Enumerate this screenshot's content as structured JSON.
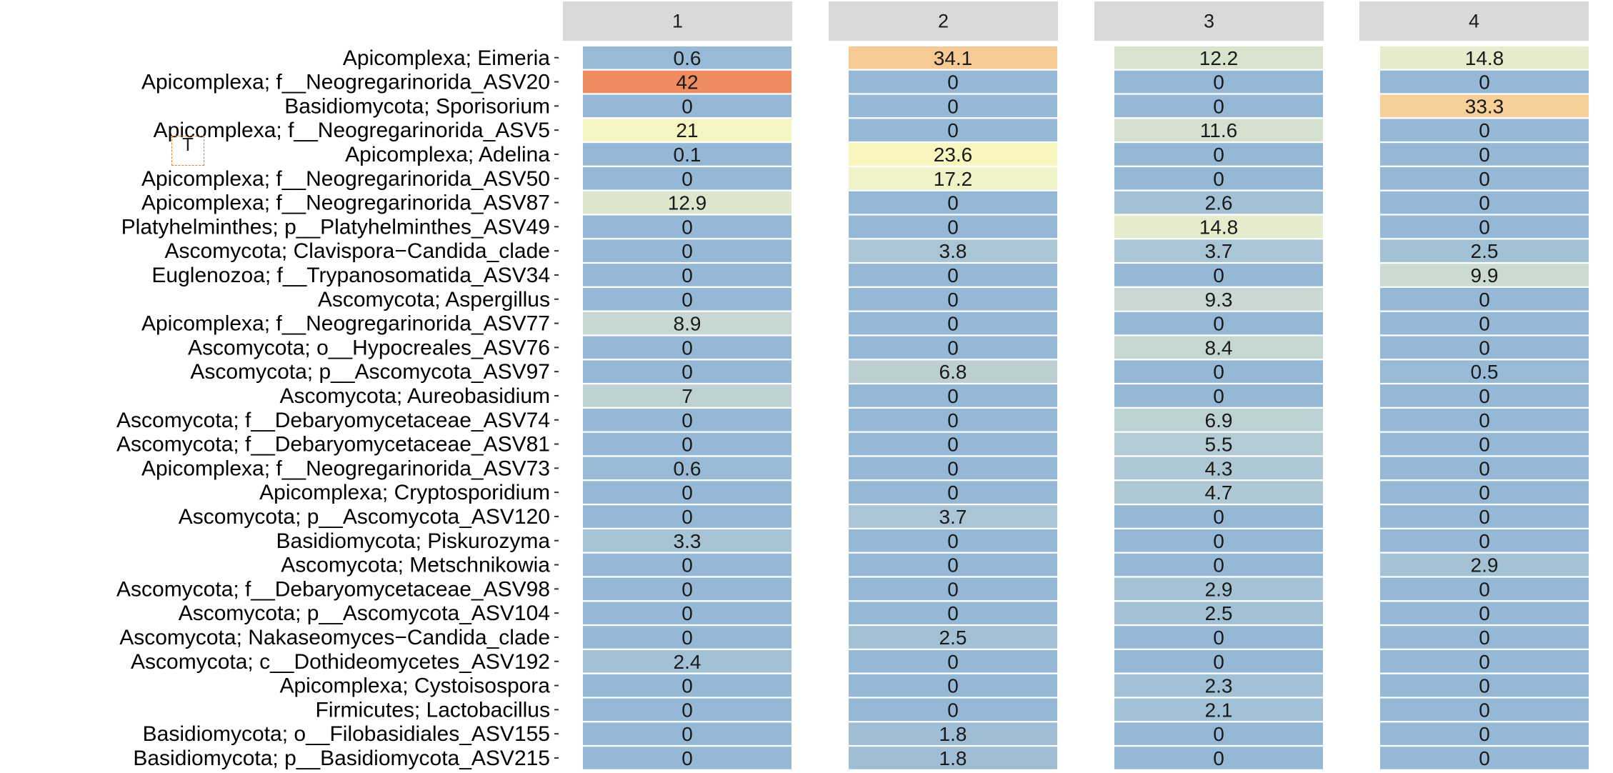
{
  "chart_data": {
    "type": "heatmap",
    "panels": [
      "1",
      "2",
      "3",
      "4"
    ],
    "rows": [
      "Apicomplexa; Eimeria",
      "Apicomplexa; f__Neogregarinorida_ASV20",
      "Basidiomycota; Sporisorium",
      "Apicomplexa; f__Neogregarinorida_ASV5",
      "Apicomplexa; Adelina",
      "Apicomplexa; f__Neogregarinorida_ASV50",
      "Apicomplexa; f__Neogregarinorida_ASV87",
      "Platyhelminthes; p__Platyhelminthes_ASV49",
      "Ascomycota; Clavispora−Candida_clade",
      "Euglenozoa; f__Trypanosomatida_ASV34",
      "Ascomycota; Aspergillus",
      "Apicomplexa; f__Neogregarinorida_ASV77",
      "Ascomycota; o__Hypocreales_ASV76",
      "Ascomycota; p__Ascomycota_ASV97",
      "Ascomycota; Aureobasidium",
      "Ascomycota; f__Debaryomycetaceae_ASV74",
      "Ascomycota; f__Debaryomycetaceae_ASV81",
      "Apicomplexa; f__Neogregarinorida_ASV73",
      "Apicomplexa; Cryptosporidium",
      "Ascomycota; p__Ascomycota_ASV120",
      "Basidiomycota; Piskurozyma",
      "Ascomycota; Metschnikowia",
      "Ascomycota; f__Debaryomycetaceae_ASV98",
      "Ascomycota; p__Ascomycota_ASV104",
      "Ascomycota; Nakaseomyces−Candida_clade",
      "Ascomycota; c__Dothideomycetes_ASV192",
      "Apicomplexa; Cystoisospora",
      "Firmicutes; Lactobacillus",
      "Basidiomycota; o__Filobasidiales_ASV155",
      "Basidiomycota; p__Basidiomycota_ASV215"
    ],
    "values": [
      [
        "0.6",
        "34.1",
        "12.2",
        "14.8"
      ],
      [
        "42",
        "0",
        "0",
        "0"
      ],
      [
        "0",
        "0",
        "0",
        "33.3"
      ],
      [
        "21",
        "0",
        "11.6",
        "0"
      ],
      [
        "0.1",
        "23.6",
        "0",
        "0"
      ],
      [
        "0",
        "17.2",
        "0",
        "0"
      ],
      [
        "12.9",
        "0",
        "2.6",
        "0"
      ],
      [
        "0",
        "0",
        "14.8",
        "0"
      ],
      [
        "0",
        "3.8",
        "3.7",
        "2.5"
      ],
      [
        "0",
        "0",
        "0",
        "9.9"
      ],
      [
        "0",
        "0",
        "9.3",
        "0"
      ],
      [
        "8.9",
        "0",
        "0",
        "0"
      ],
      [
        "0",
        "0",
        "8.4",
        "0"
      ],
      [
        "0",
        "6.8",
        "0",
        "0.5"
      ],
      [
        "7",
        "0",
        "0",
        "0"
      ],
      [
        "0",
        "0",
        "6.9",
        "0"
      ],
      [
        "0",
        "0",
        "5.5",
        "0"
      ],
      [
        "0.6",
        "0",
        "4.3",
        "0"
      ],
      [
        "0",
        "0",
        "4.7",
        "0"
      ],
      [
        "0",
        "3.7",
        "0",
        "0"
      ],
      [
        "3.3",
        "0",
        "0",
        "0"
      ],
      [
        "0",
        "0",
        "0",
        "2.9"
      ],
      [
        "0",
        "0",
        "2.9",
        "0"
      ],
      [
        "0",
        "0",
        "2.5",
        "0"
      ],
      [
        "0",
        "2.5",
        "0",
        "0"
      ],
      [
        "2.4",
        "0",
        "0",
        "0"
      ],
      [
        "0",
        "0",
        "2.3",
        "0"
      ],
      [
        "0",
        "0",
        "2.1",
        "0"
      ],
      [
        "0",
        "1.8",
        "0",
        "0"
      ],
      [
        "0",
        "1.8",
        "0",
        "0"
      ]
    ],
    "color_scale": {
      "low": "#94b8d6",
      "stops": [
        "#94b8d6",
        "#c5d6d3",
        "#eef3c8",
        "#fbf6bc",
        "#f6ce98",
        "#ee8c60"
      ],
      "domain": [
        0,
        42
      ]
    },
    "strip_color": "#d9d9d9",
    "cursor_glyph": "T"
  }
}
